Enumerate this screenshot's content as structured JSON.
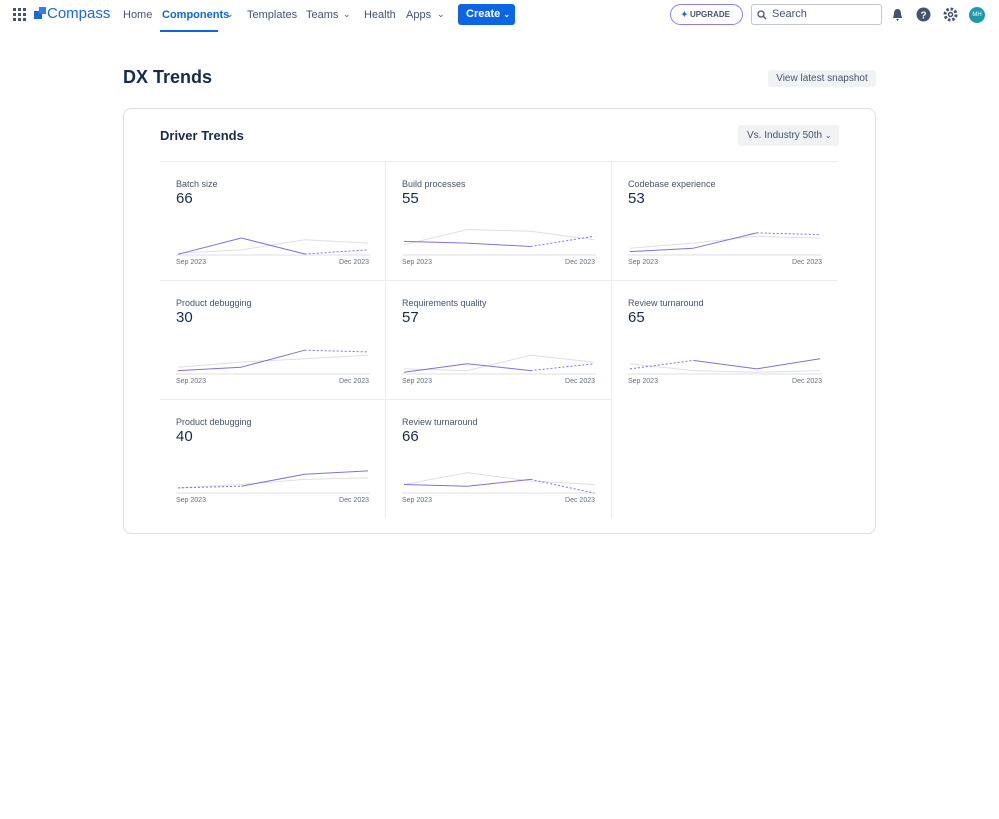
{
  "nav": {
    "product": "Compass",
    "items": [
      "Home",
      "Components",
      "Templates",
      "Teams",
      "Health",
      "Apps"
    ],
    "create": "Create",
    "upgrade": "UPGRADE",
    "search": "Search",
    "avatar": "MH"
  },
  "header": {
    "title": "DX Trends",
    "button": "View latest snapshot"
  },
  "panel": {
    "title": "Driver Trends",
    "dropdown": "Vs. Industry 50th",
    "sparkline_ylim": [
      0,
      100
    ],
    "cards": [
      {
        "title": "Batch size",
        "score": 66,
        "start": "Sep 2023",
        "end": "Dec 2023",
        "trend": [
          2,
          50,
          3,
          15
        ],
        "benchmark": [
          5,
          15,
          45,
          35
        ],
        "dashed_segment": "last"
      },
      {
        "title": "Build processes",
        "score": 55,
        "start": "Sep 2023",
        "end": "Dec 2023",
        "trend": [
          40,
          35,
          25,
          55
        ],
        "benchmark": [
          30,
          75,
          70,
          45
        ],
        "dashed_segment": "last"
      },
      {
        "title": "Codebase experience",
        "score": 53,
        "start": "Sep 2023",
        "end": "Dec 2023",
        "trend": [
          10,
          20,
          65,
          60
        ],
        "benchmark": [
          20,
          35,
          55,
          50
        ],
        "dashed_segment": "last"
      },
      {
        "title": "Product debugging",
        "score": 30,
        "start": "Sep 2023",
        "end": "Dec 2023",
        "trend": [
          10,
          20,
          70,
          65
        ],
        "benchmark": [
          20,
          35,
          45,
          55
        ],
        "dashed_segment": "last"
      },
      {
        "title": "Requirements quality",
        "score": 57,
        "start": "Sep 2023",
        "end": "Dec 2023",
        "trend": [
          5,
          30,
          10,
          30
        ],
        "benchmark": [
          15,
          10,
          55,
          35
        ],
        "dashed_segment": "last"
      },
      {
        "title": "Review turnaround",
        "score": 65,
        "start": "Sep 2023",
        "end": "Dec 2023",
        "trend": [
          15,
          40,
          15,
          45
        ],
        "benchmark": [
          30,
          10,
          5,
          10
        ],
        "dashed_segment": "first"
      },
      {
        "title": "Product debugging",
        "score": 40,
        "start": "Sep 2023",
        "end": "Dec 2023",
        "trend": [
          15,
          20,
          55,
          65
        ],
        "benchmark": [
          15,
          25,
          40,
          45
        ],
        "dashed_segment": "first"
      },
      {
        "title": "Review turnaround",
        "score": 66,
        "start": "Sep 2023",
        "end": "Dec 2023",
        "trend": [
          25,
          20,
          40,
          0
        ],
        "benchmark": [
          25,
          60,
          35,
          25
        ],
        "dashed_segment": "last"
      }
    ]
  }
}
